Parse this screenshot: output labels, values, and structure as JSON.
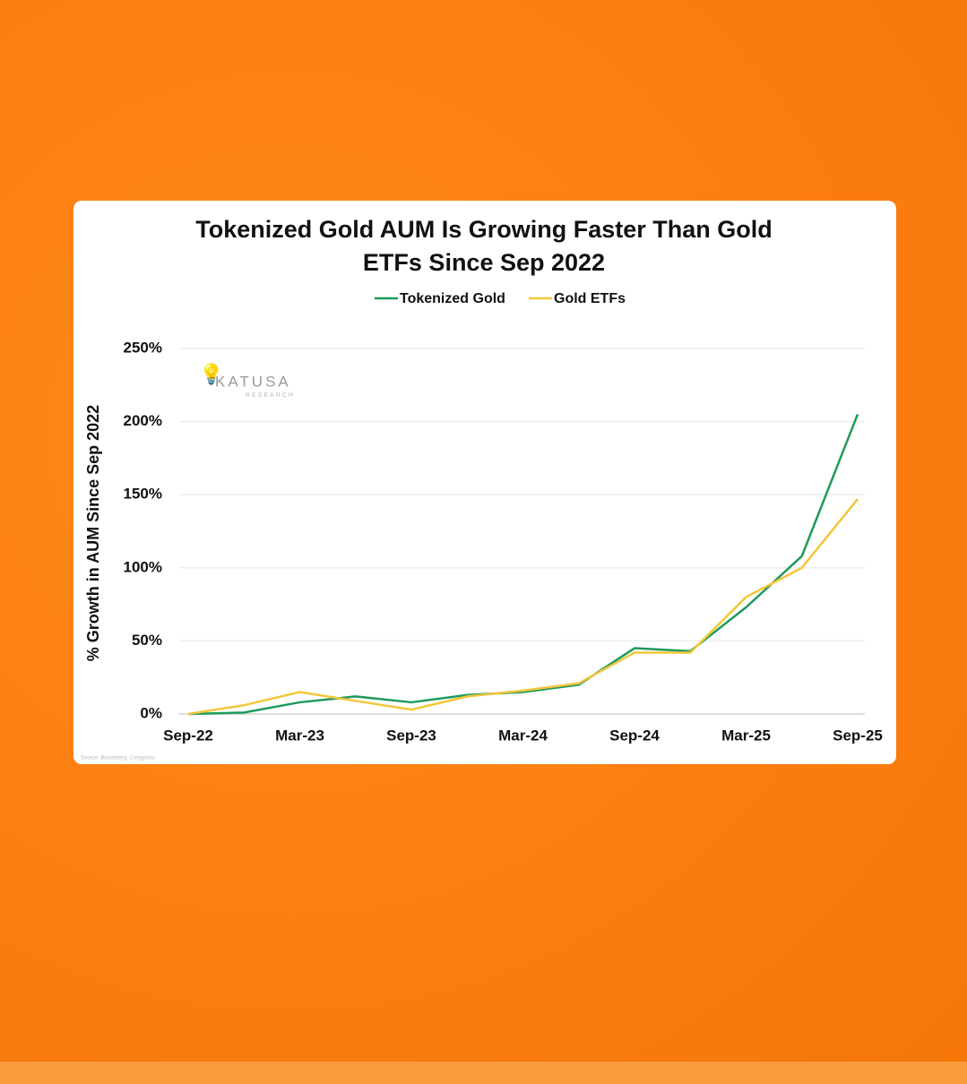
{
  "chart_data": {
    "type": "line",
    "title": "Tokenized Gold AUM Is Growing Faster Than Gold ETFs Since Sep 2022",
    "y_label": "% Growth in AUM Since Sep 2022",
    "watermark": [
      "KATUSA",
      "RESEARCH"
    ],
    "source": "Source: Bloomberg, Coingecko",
    "categories": [
      "Sep-22",
      null,
      "Mar-23",
      null,
      "Sep-23",
      null,
      "Mar-24",
      null,
      "Sep-24",
      null,
      "Mar-25",
      null,
      "Sep-25"
    ],
    "series": [
      {
        "name": "Tokenized Gold",
        "color": "#1e9a5a",
        "values": [
          0,
          1,
          8,
          12,
          8,
          13,
          15,
          20,
          45,
          43,
          73,
          108,
          205
        ]
      },
      {
        "name": "Gold ETFs",
        "color": "#f2c73a",
        "values": [
          0,
          6,
          15,
          9,
          3,
          12,
          16,
          21,
          42,
          42,
          80,
          100,
          147
        ]
      }
    ],
    "ylim": [
      0,
      250
    ],
    "yticks": [
      {
        "value": 0,
        "label": "0%"
      },
      {
        "value": 50,
        "label": "50%"
      },
      {
        "value": 100,
        "label": "100%"
      },
      {
        "value": 150,
        "label": "150%"
      },
      {
        "value": 200,
        "label": "200%"
      },
      {
        "value": 250,
        "label": "250%"
      }
    ],
    "grid": true,
    "legend": "top"
  }
}
